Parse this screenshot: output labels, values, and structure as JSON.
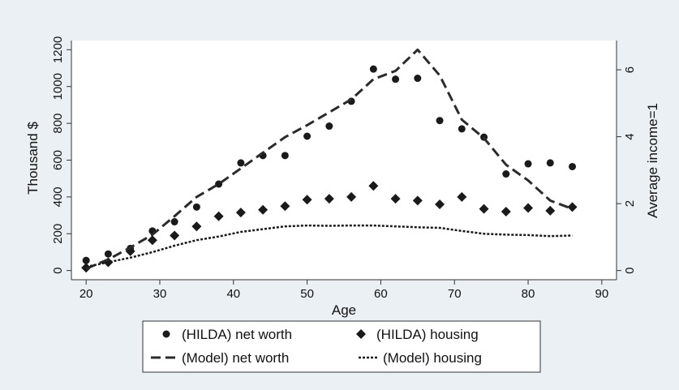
{
  "chart_data": {
    "type": "line",
    "title": "",
    "xlabel": "Age",
    "ylabel": "Thousand $",
    "y2label": "Average income=1",
    "xlim": [
      18,
      92
    ],
    "ylim": [
      -50,
      1250
    ],
    "y2lim": [
      -0.275,
      6.875
    ],
    "xticks": [
      20,
      30,
      40,
      50,
      60,
      70,
      80,
      90
    ],
    "yticks": [
      0,
      200,
      400,
      600,
      800,
      1000,
      1200
    ],
    "y2ticks": [
      0,
      2,
      4,
      6
    ],
    "legend_position": "bottom",
    "series": [
      {
        "name": "(HILDA) net worth",
        "style": "circle",
        "x": [
          20,
          23,
          26,
          29,
          32,
          35,
          38,
          41,
          44,
          47,
          50,
          53,
          56,
          59,
          62,
          65,
          68,
          71,
          74,
          77,
          80,
          83,
          86
        ],
        "values": [
          55,
          90,
          120,
          215,
          265,
          345,
          470,
          585,
          625,
          625,
          730,
          785,
          920,
          1095,
          1040,
          1045,
          815,
          770,
          725,
          525,
          580,
          585,
          565
        ]
      },
      {
        "name": "(HILDA) housing",
        "style": "diamond",
        "x": [
          20,
          23,
          26,
          29,
          32,
          35,
          38,
          41,
          44,
          47,
          50,
          53,
          56,
          59,
          62,
          65,
          68,
          71,
          74,
          77,
          80,
          83,
          86
        ],
        "values": [
          15,
          45,
          105,
          165,
          190,
          240,
          295,
          315,
          330,
          350,
          385,
          390,
          400,
          460,
          390,
          380,
          360,
          400,
          335,
          320,
          340,
          325,
          345
        ]
      },
      {
        "name": "(Model) net worth",
        "style": "long-dash",
        "x": [
          20,
          23,
          26,
          29,
          32,
          35,
          38,
          41,
          44,
          47,
          50,
          53,
          56,
          59,
          62,
          65,
          68,
          71,
          74,
          77,
          80,
          83,
          86
        ],
        "values": [
          10,
          60,
          125,
          195,
          295,
          400,
          470,
          555,
          640,
          725,
          790,
          860,
          930,
          1040,
          1085,
          1200,
          1060,
          820,
          720,
          575,
          490,
          380,
          335
        ]
      },
      {
        "name": "(Model) housing",
        "style": "short-dash",
        "x": [
          20,
          23,
          26,
          29,
          32,
          35,
          38,
          41,
          44,
          47,
          50,
          53,
          56,
          59,
          62,
          65,
          68,
          71,
          74,
          77,
          80,
          83,
          86
        ],
        "values": [
          20,
          45,
          70,
          100,
          135,
          165,
          185,
          210,
          225,
          240,
          245,
          243,
          245,
          245,
          240,
          235,
          232,
          215,
          200,
          195,
          193,
          187,
          190
        ]
      }
    ]
  }
}
